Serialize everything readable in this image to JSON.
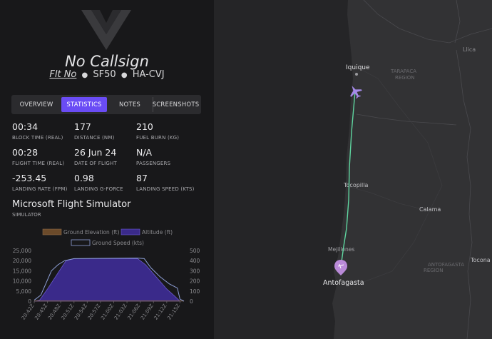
{
  "header": {
    "callsign": "No Callsign",
    "flight_no": "Flt No",
    "aircraft": "SF50",
    "registration": "HA-CVJ"
  },
  "tabs": [
    {
      "label": "OVERVIEW",
      "active": false
    },
    {
      "label": "STATISTICS",
      "active": true
    },
    {
      "label": "NOTES",
      "active": false
    },
    {
      "label": "SCREENSHOTS",
      "active": false
    }
  ],
  "stats": [
    {
      "value": "00:34",
      "label": "BLOCK TIME (REAL)"
    },
    {
      "value": "177",
      "label": "DISTANCE (NM)"
    },
    {
      "value": "210",
      "label": "FUEL BURN (KG)"
    },
    {
      "value": "00:28",
      "label": "FLIGHT TIME (REAL)"
    },
    {
      "value": "26 Jun 24",
      "label": "DATE OF FLIGHT"
    },
    {
      "value": "N/A",
      "label": "PASSENGERS"
    },
    {
      "value": "-253.45",
      "label": "LANDING RATE (FPM)"
    },
    {
      "value": "0.98",
      "label": "LANDING G-FORCE"
    },
    {
      "value": "87",
      "label": "LANDING SPEED (KTS)"
    }
  ],
  "simulator": {
    "name": "Microsoft Flight Simulator",
    "label": "SIMULATOR"
  },
  "colors": {
    "accent": "#6a4cf5",
    "altitude_fill": "#3a2a8a",
    "ground_elev": "#6b4a2a",
    "speed_line": "#8fa0d8",
    "route": "#5fd6a0"
  },
  "chart_data": {
    "type": "area",
    "legend": [
      "Ground Elevation (ft)",
      "Altitude (ft)",
      "Ground Speed (kts)"
    ],
    "x": [
      "20:42Z",
      "20:45Z",
      "20:48Z",
      "20:51Z",
      "20:54Z",
      "20:57Z",
      "21:00Z",
      "21:03Z",
      "21:06Z",
      "21:09Z",
      "21:12Z",
      "21:15Z"
    ],
    "y_left_ticks": [
      "0",
      "5,000",
      "10,000",
      "15,000",
      "20,000",
      "25,000"
    ],
    "y_right_ticks": [
      "0",
      "100",
      "200",
      "300",
      "400",
      "500"
    ],
    "ylim_left": [
      0,
      25000
    ],
    "ylim_right": [
      0,
      500
    ],
    "series": [
      {
        "name": "Altitude (ft)",
        "axis": "left",
        "points": [
          [
            0,
            0
          ],
          [
            0.4,
            500
          ],
          [
            1.0,
            6000
          ],
          [
            1.8,
            14000
          ],
          [
            2.4,
            20000
          ],
          [
            3.0,
            21000
          ],
          [
            7.8,
            21000
          ],
          [
            8.4,
            18000
          ],
          [
            9.2,
            12000
          ],
          [
            10.0,
            6000
          ],
          [
            10.6,
            2500
          ],
          [
            11.0,
            0
          ]
        ]
      },
      {
        "name": "Ground Speed (kts)",
        "axis": "right",
        "points": [
          [
            0,
            10
          ],
          [
            0.5,
            60
          ],
          [
            0.9,
            180
          ],
          [
            1.3,
            300
          ],
          [
            1.8,
            360
          ],
          [
            2.3,
            400
          ],
          [
            3.0,
            420
          ],
          [
            7.8,
            425
          ],
          [
            8.3,
            420
          ],
          [
            8.8,
            330
          ],
          [
            9.5,
            240
          ],
          [
            10.2,
            170
          ],
          [
            10.8,
            130
          ],
          [
            11.0,
            20
          ],
          [
            11.3,
            0
          ]
        ]
      },
      {
        "name": "Ground Elevation (ft)",
        "axis": "left",
        "points": [
          [
            0,
            100
          ],
          [
            11.3,
            100
          ]
        ]
      }
    ]
  },
  "map": {
    "cities": [
      {
        "name": "Iquique"
      },
      {
        "name": "Tocopilla"
      },
      {
        "name": "Calama"
      },
      {
        "name": "Mejillones"
      },
      {
        "name": "Antofagasta"
      },
      {
        "name": "Tocona"
      }
    ],
    "regions": [
      {
        "line1": "TARAPACA",
        "line2": "REGION"
      },
      {
        "line1": "ANTOFAGASTA",
        "line2": "REGION"
      }
    ],
    "country_label": "Llica"
  }
}
